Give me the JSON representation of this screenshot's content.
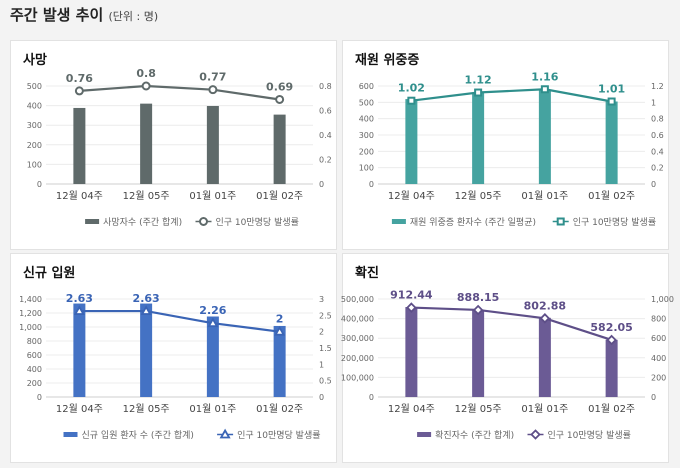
{
  "header": {
    "title": "주간 발생 추이",
    "unit": "(단위 : 명)"
  },
  "chart_data": [
    {
      "type": "bar+line",
      "title": "사망",
      "categories": [
        "12월 04주",
        "12월 05주",
        "01월 01주",
        "01월 02주"
      ],
      "bar": {
        "name": "사망자수 (주간 합계)",
        "values": [
          388,
          410,
          398,
          354
        ],
        "color": "#5f6a6a"
      },
      "line": {
        "name": "인구 10만명당 발생률",
        "values": [
          0.76,
          0.8,
          0.77,
          0.69
        ],
        "labels": [
          "0.76",
          "0.8",
          "0.77",
          "0.69"
        ],
        "marker": "circle",
        "color": "#5f6a6a"
      },
      "ylim": [
        0,
        500
      ],
      "yticks": [
        "0",
        "100",
        "200",
        "300",
        "400",
        "500"
      ],
      "y2lim": [
        0,
        0.8
      ],
      "y2ticks": [
        "0",
        "0.2",
        "0.4",
        "0.6",
        "0.8"
      ],
      "grid": true,
      "legend": "bottom"
    },
    {
      "type": "bar+line",
      "title": "재원 위중증",
      "categories": [
        "12월 04주",
        "12월 05주",
        "01월 01주",
        "01월 02주"
      ],
      "bar": {
        "name": "재원 위중증 환자수 (주간 일평균)",
        "values": [
          520,
          560,
          577,
          505
        ],
        "color": "#45a3a0"
      },
      "line": {
        "name": "인구 10만명당 발생률",
        "values": [
          1.02,
          1.12,
          1.16,
          1.01
        ],
        "labels": [
          "1.02",
          "1.12",
          "1.16",
          "1.01"
        ],
        "marker": "square",
        "color": "#2f8f8c"
      },
      "ylim": [
        0,
        600
      ],
      "yticks": [
        "0",
        "100",
        "200",
        "300",
        "400",
        "500",
        "600"
      ],
      "y2lim": [
        0,
        1.2
      ],
      "y2ticks": [
        "0",
        "0.2",
        "0.4",
        "0.6",
        "0.8",
        "1",
        "1.2"
      ],
      "grid": true,
      "legend": "bottom"
    },
    {
      "type": "bar+line",
      "title": "신규 입원",
      "categories": [
        "12월 04주",
        "12월 05주",
        "01월 01주",
        "01월 02주"
      ],
      "bar": {
        "name": "신규 입원 환자 수 (주간 합계)",
        "values": [
          1335,
          1335,
          1150,
          1015
        ],
        "color": "#4472c4"
      },
      "line": {
        "name": "인구 10만명당 발생률",
        "values": [
          2.63,
          2.63,
          2.26,
          2
        ],
        "labels": [
          "2.63",
          "2.63",
          "2.26",
          "2"
        ],
        "marker": "triangle",
        "color": "#3a64b5"
      },
      "ylim": [
        0,
        1400
      ],
      "yticks": [
        "0",
        "200",
        "400",
        "600",
        "800",
        "1,000",
        "1,200",
        "1,400"
      ],
      "y2lim": [
        0,
        3
      ],
      "y2ticks": [
        "0",
        "0.5",
        "1",
        "1.5",
        "2",
        "2.5",
        "3"
      ],
      "grid": true,
      "legend": "bottom"
    },
    {
      "type": "bar+line",
      "title": "확진",
      "categories": [
        "12월 04주",
        "12월 05주",
        "01월 01주",
        "01월 02주"
      ],
      "bar": {
        "name": "확진자수 (주간 합계)",
        "values": [
          459000,
          446000,
          404000,
          292000
        ],
        "color": "#6b5b95"
      },
      "line": {
        "name": "인구 10만명당 발생률",
        "values": [
          912.44,
          888.15,
          802.88,
          582.05
        ],
        "labels": [
          "912.44",
          "888.15",
          "802.88",
          "582.05"
        ],
        "marker": "diamond",
        "color": "#5e4f88"
      },
      "ylim": [
        0,
        500000
      ],
      "yticks": [
        "0",
        "100,000",
        "200,000",
        "300,000",
        "400,000",
        "500,000"
      ],
      "y2lim": [
        0,
        1000
      ],
      "y2ticks": [
        "0",
        "200",
        "400",
        "600",
        "800",
        "1,000"
      ],
      "grid": true,
      "legend": "bottom"
    }
  ]
}
